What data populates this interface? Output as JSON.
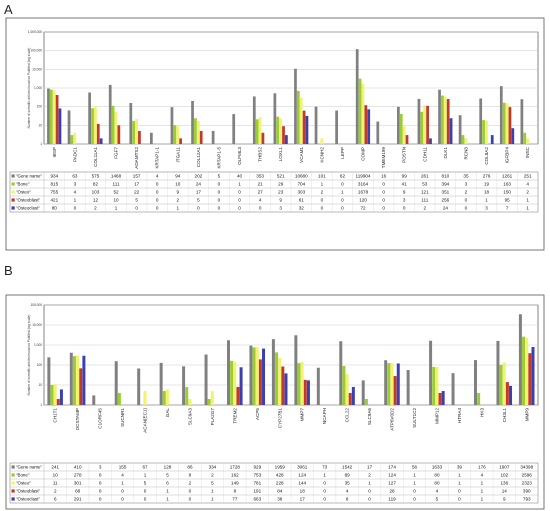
{
  "colors": {
    "gene": "#808080",
    "bone": "#9acd32",
    "osteo": "#f2f26e",
    "osteoblast": "#c0392b",
    "osteoclast": "#3b3fb0",
    "frame": "#333333",
    "grid": "#c9c9c9"
  },
  "chart_data": [
    {
      "panel": "A",
      "type": "bar",
      "ylabel": "Number of scientific articles found on PubMed (log scale)",
      "yscale": "log",
      "ylim": [
        1,
        1000000
      ],
      "ticks": [
        "1",
        "10",
        "100",
        "1,000",
        "10,000",
        "100,000",
        "1,000,000"
      ],
      "categories": [
        "IBSP",
        "PADC1",
        "COL11A1",
        "FGF7",
        "ADAMTS2",
        "KRTAP1-1",
        "ITGA11",
        "COL12A1",
        "KRTAP1-5",
        "OLFML3",
        "THBS2",
        "LOXL1",
        "VCAM1",
        "KCNH2",
        "LEPP",
        "COMP",
        "TMEM199",
        "POSTN",
        "CDH11",
        "DLK1",
        "RCN3",
        "COL8A2",
        "IGFBP4",
        "INSC"
      ],
      "series": [
        {
          "name": "\"Gene name\"",
          "values": [
            934,
            63,
            575,
            1468,
            157,
            4,
            94,
            202,
            5,
            40,
            353,
            521,
            10680,
            101,
            62,
            119904,
            16,
            99,
            261,
            810,
            35,
            276,
            1261,
            251
          ]
        },
        {
          "name": "\"Bone\"",
          "values": [
            815,
            3,
            82,
            111,
            17,
            0,
            10,
            24,
            0,
            1,
            21,
            29,
            704,
            1,
            0,
            3164,
            0,
            41,
            53,
            394,
            3,
            19,
            163,
            4
          ]
        },
        {
          "name": "\"Osteo\"",
          "values": [
            755,
            4,
            103,
            52,
            22,
            0,
            9,
            17,
            0,
            0,
            27,
            23,
            303,
            2,
            1,
            1678,
            0,
            9,
            121,
            351,
            2,
            18,
            150,
            2
          ]
        },
        {
          "name": "\"Osteoblast\"",
          "values": [
            421,
            1,
            12,
            10,
            5,
            0,
            2,
            5,
            0,
            0,
            4,
            9,
            61,
            0,
            0,
            120,
            0,
            3,
            111,
            256,
            0,
            1,
            95,
            1
          ]
        },
        {
          "name": "\"Osteoclast\"",
          "values": [
            80,
            0,
            2,
            1,
            0,
            0,
            1,
            0,
            0,
            0,
            0,
            3,
            32,
            0,
            0,
            72,
            0,
            0,
            2,
            24,
            0,
            3,
            7,
            1
          ]
        }
      ]
    },
    {
      "panel": "B",
      "type": "bar",
      "ylabel": "Number of scientific articles found on PubMed (log scale)",
      "yscale": "log",
      "ylim": [
        1,
        100000
      ],
      "ticks": [
        "1",
        "10",
        "100",
        "1,000",
        "10,000",
        "100,000"
      ],
      "categories": [
        "CH1T1",
        "DCSTAMP",
        "C1ORF45",
        "SUCNR1",
        "ACAN(EC1)",
        "GAL",
        "SLC9A3",
        "PLA2G7",
        "TREM2",
        "ACP5",
        "CYP27B1",
        "MMP7",
        "NCAPH",
        "CCL22",
        "SLC9A6",
        "ATP6V0D2",
        "SULT1C2",
        "MMP12",
        "HTRA4",
        "HK3",
        "CH3L1",
        "MMP9"
      ],
      "series": [
        {
          "name": "\"Gene name\"",
          "values": [
            241,
            410,
            3,
            155,
            67,
            128,
            86,
            334,
            1728,
            929,
            1959,
            3061,
            73,
            1542,
            17,
            174,
            56,
            1633,
            39,
            176,
            1607,
            34398
          ]
        },
        {
          "name": "\"Bone\"",
          "values": [
            10,
            278,
            0,
            4,
            1,
            5,
            8,
            2,
            162,
            753,
            428,
            124,
            1,
            89,
            2,
            124,
            1,
            80,
            1,
            4,
            102,
            2596
          ]
        },
        {
          "name": "\"Osteo\"",
          "values": [
            11,
            301,
            0,
            1,
            5,
            6,
            2,
            5,
            149,
            781,
            228,
            144,
            0,
            35,
            1,
            127,
            1,
            80,
            1,
            1,
            136,
            2323
          ]
        },
        {
          "name": "\"Osteoblast\"",
          "values": [
            2,
            68,
            0,
            0,
            0,
            1,
            0,
            1,
            8,
            191,
            84,
            18,
            0,
            4,
            0,
            28,
            0,
            4,
            0,
            1,
            14,
            390
          ]
        },
        {
          "name": "\"Osteoclast\"",
          "values": [
            6,
            291,
            0,
            0,
            0,
            1,
            0,
            1,
            77,
            663,
            38,
            17,
            0,
            8,
            0,
            119,
            0,
            5,
            0,
            1,
            9,
            793
          ]
        }
      ]
    }
  ]
}
